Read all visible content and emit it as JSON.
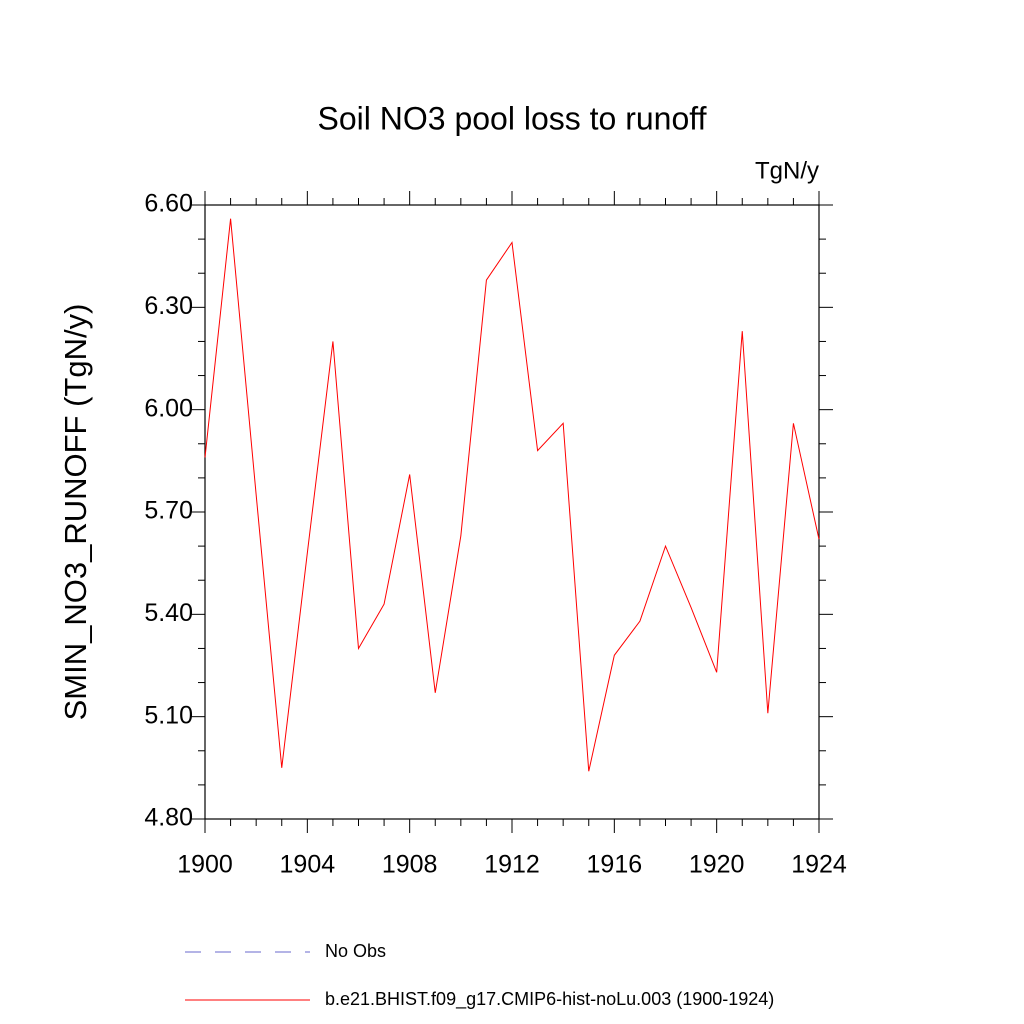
{
  "chart_data": {
    "type": "line",
    "title": "Soil NO3 pool loss to runoff",
    "units": "TgN/y",
    "y_label": "SMIN_NO3_RUNOFF  (TgN/y)",
    "x": [
      1900,
      1901,
      1902,
      1903,
      1904,
      1905,
      1906,
      1907,
      1908,
      1909,
      1910,
      1911,
      1912,
      1913,
      1914,
      1915,
      1916,
      1917,
      1918,
      1919,
      1920,
      1921,
      1922,
      1923,
      1924
    ],
    "series": [
      {
        "name": "b.e21.BHIST.f09_g17.CMIP6-hist-noLu.003 (1900-1924)",
        "color": "#ff0000",
        "values": [
          5.86,
          6.56,
          5.75,
          4.95,
          5.58,
          6.2,
          5.3,
          5.43,
          5.81,
          5.17,
          5.63,
          6.38,
          6.49,
          5.88,
          5.96,
          4.94,
          5.28,
          5.38,
          5.6,
          5.42,
          5.23,
          6.23,
          5.11,
          5.96,
          5.62
        ]
      }
    ],
    "legend_extra": [
      {
        "name": "No Obs",
        "color": "#6a6acd",
        "dashed": true
      }
    ],
    "xlim": [
      1900,
      1924
    ],
    "xticks": [
      1900,
      1904,
      1908,
      1912,
      1916,
      1920,
      1924
    ],
    "xminorticks": [
      1901,
      1902,
      1903,
      1905,
      1906,
      1907,
      1909,
      1910,
      1911,
      1913,
      1914,
      1915,
      1917,
      1918,
      1919,
      1921,
      1922,
      1923
    ],
    "ylim": [
      4.8,
      6.6
    ],
    "yticks": [
      {
        "value": 4.8,
        "label": "4.80"
      },
      {
        "value": 5.1,
        "label": "5.10"
      },
      {
        "value": 5.4,
        "label": "5.40"
      },
      {
        "value": 5.7,
        "label": "5.70"
      },
      {
        "value": 6.0,
        "label": "6.00"
      },
      {
        "value": 6.3,
        "label": "6.30"
      },
      {
        "value": 6.6,
        "label": "6.60"
      }
    ],
    "yminorticks": [
      4.9,
      5.0,
      5.2,
      5.3,
      5.5,
      5.6,
      5.8,
      5.9,
      6.1,
      6.2,
      6.4,
      6.5
    ],
    "grid": false
  }
}
